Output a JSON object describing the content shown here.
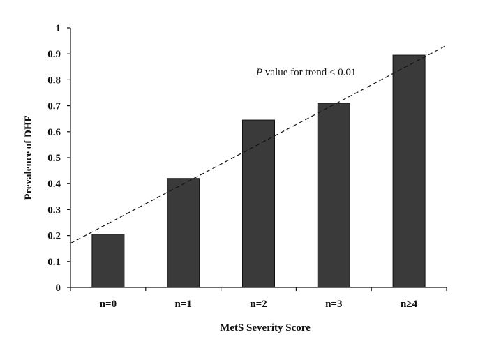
{
  "chart_data": {
    "type": "bar",
    "categories": [
      "n=0",
      "n=1",
      "n=2",
      "n=3",
      "n≥4"
    ],
    "values": [
      0.205,
      0.42,
      0.645,
      0.71,
      0.895
    ],
    "xlabel": "MetS Severity Score",
    "ylabel": "Prevalence of DHF",
    "ylim": [
      0,
      1
    ],
    "yticks": [
      "0",
      "0.1",
      "0.2",
      "0.3",
      "0.4",
      "0.5",
      "0.6",
      "0.7",
      "0.8",
      "0.9",
      "1"
    ],
    "trendline": {
      "style": "dashed",
      "start_y": 0.17,
      "end_y": 0.93
    },
    "annotation": {
      "italic_part": "P",
      "text": " value for trend < 0.01"
    },
    "bar_color": "#3a3a3a",
    "grid": false,
    "legend": "none"
  }
}
